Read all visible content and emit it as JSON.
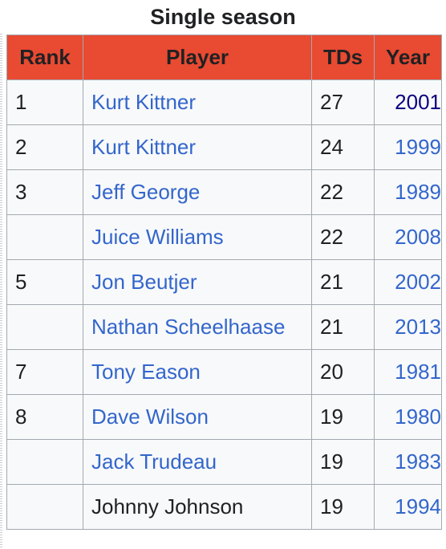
{
  "caption": "Single season",
  "headers": {
    "rank": "Rank",
    "player": "Player",
    "tds": "TDs",
    "year": "Year"
  },
  "rows": [
    {
      "rank": "1",
      "player": "Kurt Kittner",
      "player_link": true,
      "tds": "27",
      "year": "2001",
      "year_visited": true
    },
    {
      "rank": "2",
      "player": "Kurt Kittner",
      "player_link": true,
      "tds": "24",
      "year": "1999",
      "year_visited": false
    },
    {
      "rank": "3",
      "player": "Jeff George",
      "player_link": true,
      "tds": "22",
      "year": "1989",
      "year_visited": false
    },
    {
      "rank": "",
      "player": "Juice Williams",
      "player_link": true,
      "tds": "22",
      "year": "2008",
      "year_visited": false
    },
    {
      "rank": "5",
      "player": "Jon Beutjer",
      "player_link": true,
      "tds": "21",
      "year": "2002",
      "year_visited": false
    },
    {
      "rank": "",
      "player": "Nathan Scheelhaase",
      "player_link": true,
      "tds": "21",
      "year": "2013",
      "year_visited": false
    },
    {
      "rank": "7",
      "player": "Tony Eason",
      "player_link": true,
      "tds": "20",
      "year": "1981",
      "year_visited": false
    },
    {
      "rank": "8",
      "player": "Dave Wilson",
      "player_link": true,
      "tds": "19",
      "year": "1980",
      "year_visited": false
    },
    {
      "rank": "",
      "player": "Jack Trudeau",
      "player_link": true,
      "tds": "19",
      "year": "1983",
      "year_visited": false
    },
    {
      "rank": "",
      "player": "Johnny Johnson",
      "player_link": false,
      "tds": "19",
      "year": "1994",
      "year_visited": false
    }
  ],
  "colors": {
    "header_bg": "#e94a32",
    "link": "#3366cc",
    "visited_link": "#0b0080",
    "cell_bg": "#f8f9fa",
    "border": "#a2a9b1"
  }
}
